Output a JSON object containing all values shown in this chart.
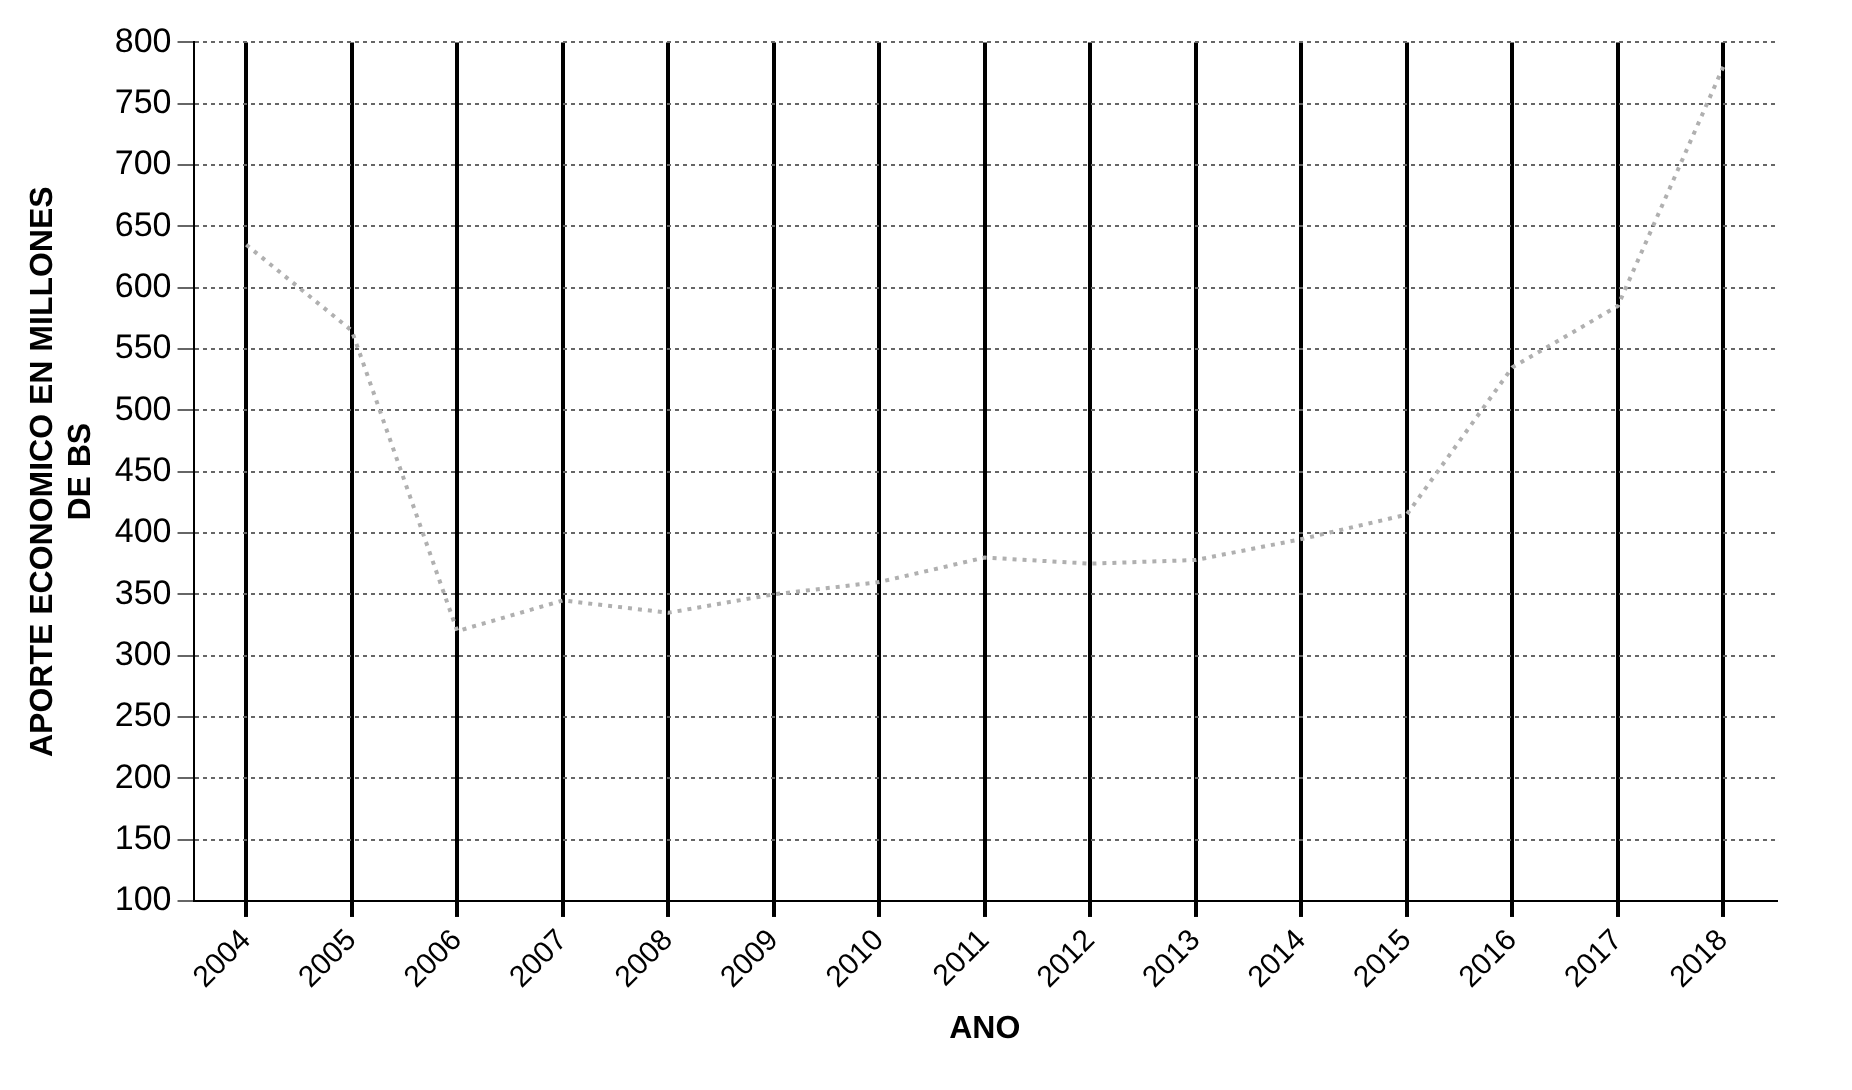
{
  "chart_data": {
    "type": "line",
    "xlabel": "ANO",
    "ylabel": "APORTE ECONOMICO EN MILLONES DE BS",
    "categories": [
      "2004",
      "2005",
      "2006",
      "2007",
      "2008",
      "2009",
      "2010",
      "2011",
      "2012",
      "2013",
      "2014",
      "2015",
      "2016",
      "2017",
      "2018"
    ],
    "series": [
      {
        "color": "#b0b0b0",
        "values": [
          635,
          565,
          320,
          345,
          335,
          350,
          360,
          380,
          375,
          378,
          395,
          415,
          535,
          585,
          780
        ]
      }
    ],
    "ylim": [
      100,
      800
    ],
    "yticks": [
      100,
      150,
      200,
      250,
      300,
      350,
      400,
      450,
      500,
      550,
      600,
      650,
      700,
      750,
      800
    ],
    "grid": true,
    "legend": false,
    "marker": "none",
    "line_style": "dotted"
  }
}
